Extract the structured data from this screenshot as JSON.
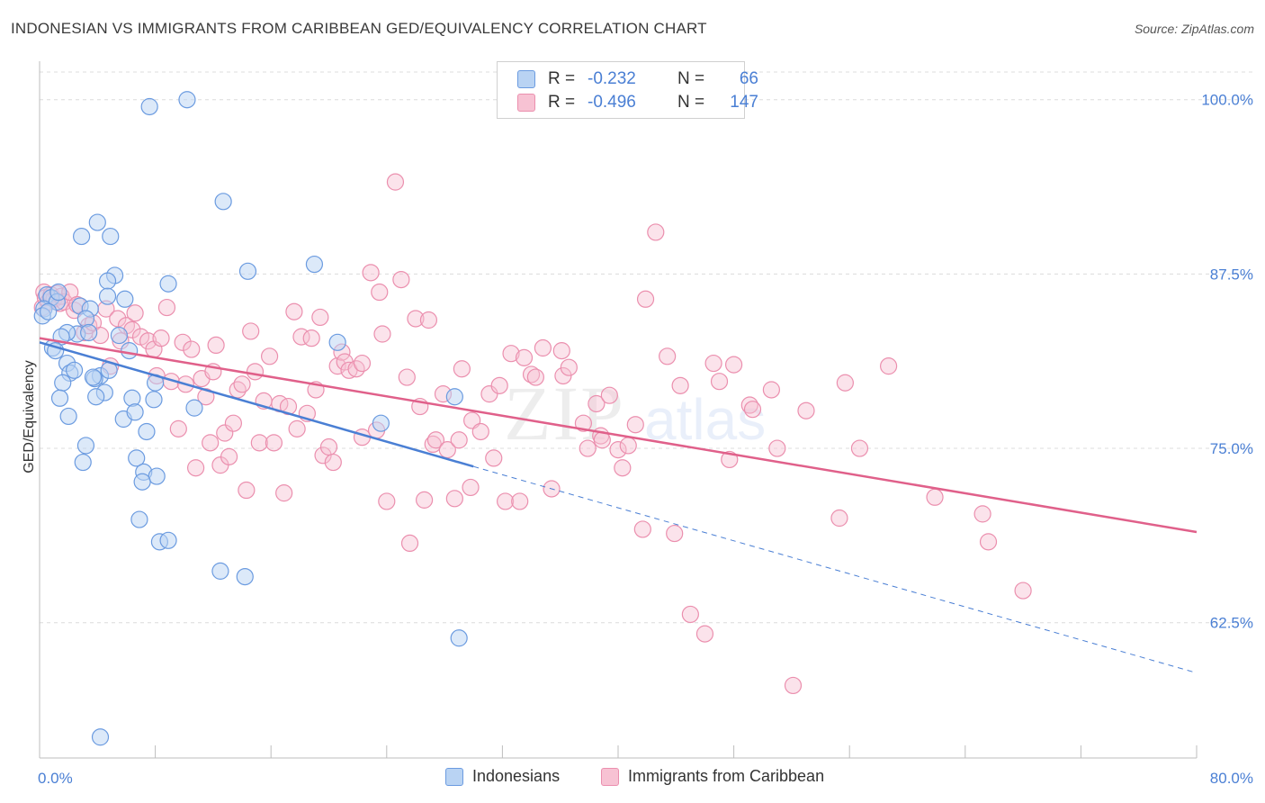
{
  "header": {
    "title": "INDONESIAN VS IMMIGRANTS FROM CARIBBEAN GED/EQUIVALENCY CORRELATION CHART",
    "source": "Source: ZipAtlas.com"
  },
  "legend": {
    "series": [
      {
        "r_label": "R =",
        "r_value": "-0.232",
        "n_label": "N =",
        "n_value": "66"
      },
      {
        "r_label": "R =",
        "r_value": "-0.496",
        "n_label": "N =",
        "n_value": "147"
      }
    ]
  },
  "bottom_legend": [
    "Indonesians",
    "Immigrants from Caribbean"
  ],
  "watermark": {
    "zip": "ZIP",
    "atlas": "atlas"
  },
  "colors": {
    "blue": "#4a7fd4",
    "blue_fill": "#b9d3f3",
    "blue_stroke": "#6b9be0",
    "pink": "#e0608a",
    "pink_fill": "#f7c2d3",
    "pink_stroke": "#eb8fae",
    "axis_label": "#4a7fd4"
  },
  "chart_data": {
    "type": "scatter",
    "title": "INDONESIAN VS IMMIGRANTS FROM CARIBBEAN GED/EQUIVALENCY CORRELATION CHART",
    "xlabel": "",
    "ylabel": "GED/Equivalency",
    "xlim": [
      0,
      80
    ],
    "ylim": [
      52.8,
      102.5
    ],
    "x_tick_labels": [
      "0.0%",
      "80.0%"
    ],
    "y_ticks": [
      62.5,
      75.0,
      87.5,
      100.0
    ],
    "y_tick_labels": [
      "62.5%",
      "75.0%",
      "87.5%",
      "100.0%"
    ],
    "grid": true,
    "legend_position": "top-center",
    "series": [
      {
        "name": "Indonesians",
        "color": "#4a7fd4",
        "r": -0.232,
        "n": 66,
        "trend": {
          "x0": 0.0,
          "y0": 82.6,
          "x1": 30.0,
          "y1": 73.7,
          "dashed_to_x": 80.0,
          "dashed_to_y": 58.9
        },
        "points": [
          [
            10.2,
            100.0
          ],
          [
            7.6,
            99.5
          ],
          [
            12.7,
            92.7
          ],
          [
            4.0,
            91.2
          ],
          [
            2.9,
            90.2
          ],
          [
            4.9,
            90.2
          ],
          [
            14.4,
            87.7
          ],
          [
            19.0,
            88.2
          ],
          [
            5.2,
            87.4
          ],
          [
            8.9,
            86.8
          ],
          [
            4.7,
            87.0
          ],
          [
            0.5,
            86.0
          ],
          [
            0.8,
            85.8
          ],
          [
            1.2,
            85.5
          ],
          [
            0.3,
            85.0
          ],
          [
            0.2,
            84.5
          ],
          [
            5.9,
            85.7
          ],
          [
            2.8,
            85.2
          ],
          [
            3.5,
            85.0
          ],
          [
            4.7,
            85.9
          ],
          [
            3.2,
            84.3
          ],
          [
            2.6,
            83.2
          ],
          [
            1.9,
            83.3
          ],
          [
            1.5,
            83.0
          ],
          [
            5.5,
            83.1
          ],
          [
            3.4,
            83.3
          ],
          [
            0.9,
            82.2
          ],
          [
            1.1,
            82.0
          ],
          [
            6.2,
            82.0
          ],
          [
            20.6,
            82.6
          ],
          [
            1.9,
            81.1
          ],
          [
            2.1,
            80.4
          ],
          [
            2.4,
            80.6
          ],
          [
            4.2,
            80.2
          ],
          [
            3.8,
            80.0
          ],
          [
            4.8,
            80.6
          ],
          [
            1.6,
            79.7
          ],
          [
            8.0,
            79.7
          ],
          [
            4.5,
            79.0
          ],
          [
            1.4,
            78.6
          ],
          [
            3.9,
            78.7
          ],
          [
            6.4,
            78.6
          ],
          [
            7.9,
            78.5
          ],
          [
            10.7,
            77.9
          ],
          [
            28.7,
            78.7
          ],
          [
            2.0,
            77.3
          ],
          [
            5.8,
            77.1
          ],
          [
            6.6,
            77.6
          ],
          [
            7.4,
            76.2
          ],
          [
            23.6,
            76.8
          ],
          [
            3.2,
            75.2
          ],
          [
            6.7,
            74.3
          ],
          [
            3.0,
            74.0
          ],
          [
            7.2,
            73.3
          ],
          [
            8.1,
            73.0
          ],
          [
            7.1,
            72.6
          ],
          [
            6.9,
            69.9
          ],
          [
            8.3,
            68.3
          ],
          [
            8.9,
            68.4
          ],
          [
            12.5,
            66.2
          ],
          [
            14.2,
            65.8
          ],
          [
            29.0,
            61.4
          ],
          [
            4.2,
            54.3
          ],
          [
            1.3,
            86.2
          ],
          [
            0.6,
            84.8
          ],
          [
            3.7,
            80.1
          ]
        ]
      },
      {
        "name": "Immigrants from Caribbean",
        "color": "#e0608a",
        "r": -0.496,
        "n": 147,
        "trend": {
          "x0": 0.0,
          "y0": 82.9,
          "x1": 80.0,
          "y1": 69.0
        },
        "points": [
          [
            0.2,
            85.1
          ],
          [
            0.3,
            86.2
          ],
          [
            0.4,
            85.8
          ],
          [
            0.6,
            85.5
          ],
          [
            0.8,
            86.0
          ],
          [
            1.0,
            85.7
          ],
          [
            1.2,
            86.1
          ],
          [
            1.4,
            85.4
          ],
          [
            1.5,
            85.9
          ],
          [
            1.7,
            85.5
          ],
          [
            2.1,
            86.2
          ],
          [
            2.4,
            84.9
          ],
          [
            2.6,
            85.3
          ],
          [
            3.1,
            83.3
          ],
          [
            3.4,
            83.8
          ],
          [
            3.7,
            84.0
          ],
          [
            4.2,
            83.1
          ],
          [
            4.6,
            85.0
          ],
          [
            4.9,
            80.9
          ],
          [
            5.4,
            84.3
          ],
          [
            5.6,
            82.7
          ],
          [
            6.0,
            83.8
          ],
          [
            6.4,
            83.5
          ],
          [
            6.6,
            84.7
          ],
          [
            7.0,
            83.0
          ],
          [
            7.5,
            82.7
          ],
          [
            7.9,
            82.1
          ],
          [
            8.1,
            80.2
          ],
          [
            8.4,
            82.9
          ],
          [
            8.8,
            85.1
          ],
          [
            9.1,
            79.8
          ],
          [
            9.6,
            76.4
          ],
          [
            9.9,
            82.6
          ],
          [
            10.1,
            79.6
          ],
          [
            10.5,
            82.1
          ],
          [
            10.8,
            73.6
          ],
          [
            11.2,
            80.0
          ],
          [
            11.5,
            78.7
          ],
          [
            11.8,
            75.4
          ],
          [
            12.0,
            80.5
          ],
          [
            12.2,
            82.4
          ],
          [
            12.5,
            73.8
          ],
          [
            12.8,
            76.1
          ],
          [
            13.1,
            74.4
          ],
          [
            13.4,
            76.8
          ],
          [
            13.7,
            79.2
          ],
          [
            14.0,
            79.6
          ],
          [
            14.3,
            72.0
          ],
          [
            14.6,
            83.4
          ],
          [
            14.9,
            80.5
          ],
          [
            15.2,
            75.4
          ],
          [
            15.5,
            78.4
          ],
          [
            15.9,
            81.6
          ],
          [
            16.2,
            75.4
          ],
          [
            16.6,
            78.2
          ],
          [
            16.9,
            71.8
          ],
          [
            17.2,
            78.0
          ],
          [
            17.6,
            84.8
          ],
          [
            17.8,
            76.4
          ],
          [
            18.1,
            83.0
          ],
          [
            18.5,
            77.5
          ],
          [
            18.8,
            82.9
          ],
          [
            19.1,
            79.2
          ],
          [
            19.4,
            84.4
          ],
          [
            19.6,
            74.5
          ],
          [
            20.0,
            75.1
          ],
          [
            20.3,
            74.0
          ],
          [
            20.6,
            80.9
          ],
          [
            20.9,
            81.9
          ],
          [
            21.1,
            81.2
          ],
          [
            21.4,
            80.6
          ],
          [
            21.9,
            80.7
          ],
          [
            22.3,
            81.1
          ],
          [
            22.3,
            75.8
          ],
          [
            22.9,
            87.6
          ],
          [
            23.3,
            76.3
          ],
          [
            23.5,
            86.2
          ],
          [
            23.7,
            83.2
          ],
          [
            24.0,
            71.2
          ],
          [
            24.6,
            94.1
          ],
          [
            25.0,
            87.1
          ],
          [
            25.4,
            80.1
          ],
          [
            25.6,
            68.2
          ],
          [
            26.0,
            84.3
          ],
          [
            26.3,
            78.0
          ],
          [
            26.6,
            71.3
          ],
          [
            26.9,
            84.2
          ],
          [
            27.2,
            75.3
          ],
          [
            27.4,
            75.6
          ],
          [
            27.9,
            78.9
          ],
          [
            28.2,
            74.9
          ],
          [
            28.7,
            71.4
          ],
          [
            29.0,
            75.6
          ],
          [
            29.2,
            80.7
          ],
          [
            29.8,
            72.2
          ],
          [
            29.9,
            77.0
          ],
          [
            30.5,
            76.2
          ],
          [
            31.1,
            78.9
          ],
          [
            31.4,
            74.3
          ],
          [
            31.8,
            79.5
          ],
          [
            32.2,
            71.2
          ],
          [
            32.6,
            81.8
          ],
          [
            33.2,
            71.2
          ],
          [
            33.5,
            81.5
          ],
          [
            34.0,
            80.3
          ],
          [
            34.3,
            80.1
          ],
          [
            34.8,
            82.2
          ],
          [
            35.4,
            72.1
          ],
          [
            36.1,
            82.0
          ],
          [
            36.2,
            80.2
          ],
          [
            36.6,
            80.8
          ],
          [
            37.6,
            76.8
          ],
          [
            37.9,
            75.0
          ],
          [
            38.5,
            78.2
          ],
          [
            38.8,
            75.9
          ],
          [
            38.9,
            75.6
          ],
          [
            39.4,
            78.8
          ],
          [
            40.0,
            74.9
          ],
          [
            40.3,
            73.6
          ],
          [
            40.7,
            75.2
          ],
          [
            41.2,
            76.7
          ],
          [
            41.7,
            69.2
          ],
          [
            41.9,
            85.7
          ],
          [
            42.6,
            90.5
          ],
          [
            43.4,
            81.6
          ],
          [
            43.9,
            68.9
          ],
          [
            44.3,
            79.5
          ],
          [
            45.0,
            63.1
          ],
          [
            46.0,
            61.7
          ],
          [
            46.6,
            81.1
          ],
          [
            47.0,
            79.8
          ],
          [
            47.7,
            74.2
          ],
          [
            48.0,
            81.0
          ],
          [
            49.1,
            78.1
          ],
          [
            49.3,
            77.8
          ],
          [
            50.6,
            79.2
          ],
          [
            51.0,
            75.0
          ],
          [
            52.1,
            58.0
          ],
          [
            53.0,
            77.7
          ],
          [
            55.3,
            70.0
          ],
          [
            55.7,
            79.7
          ],
          [
            56.7,
            75.0
          ],
          [
            58.7,
            80.9
          ],
          [
            61.9,
            71.5
          ],
          [
            65.2,
            70.3
          ],
          [
            65.6,
            68.3
          ],
          [
            68.0,
            64.8
          ]
        ]
      }
    ]
  }
}
